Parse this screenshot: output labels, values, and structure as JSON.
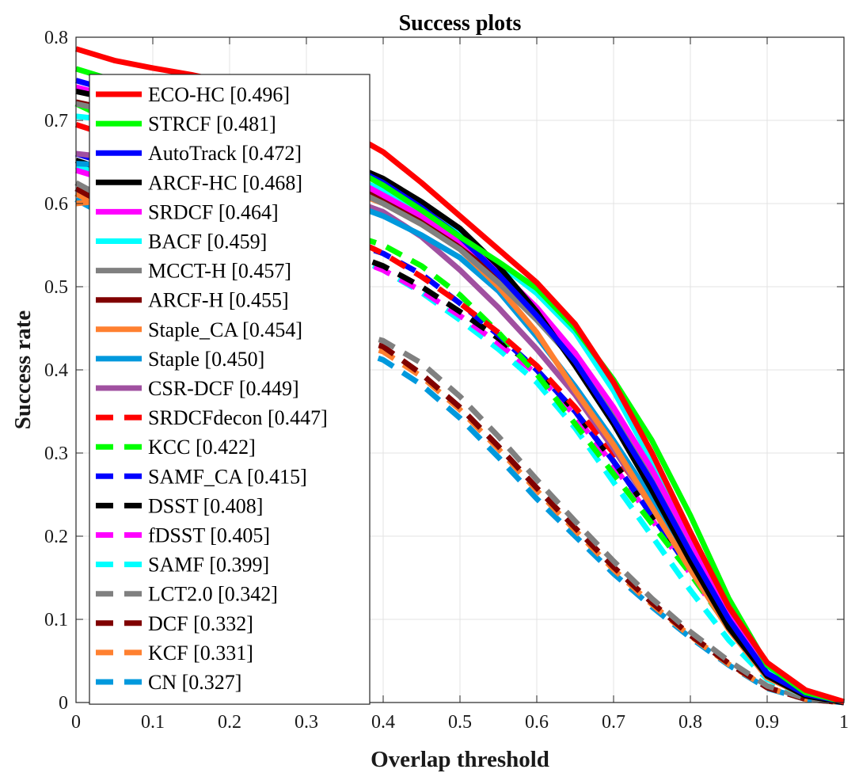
{
  "chart_data": {
    "type": "line",
    "title": "Success plots",
    "xlabel": "Overlap threshold",
    "ylabel": "Success rate",
    "xlim": [
      0,
      1
    ],
    "ylim": [
      0,
      0.8
    ],
    "xticks": [
      "0",
      "0.1",
      "0.2",
      "0.3",
      "0.4",
      "0.5",
      "0.6",
      "0.7",
      "0.8",
      "0.9",
      "1"
    ],
    "yticks": [
      "0",
      "0.1",
      "0.2",
      "0.3",
      "0.4",
      "0.5",
      "0.6",
      "0.7",
      "0.8"
    ],
    "grid": true,
    "legend_position": "top-left",
    "x": [
      0,
      0.05,
      0.1,
      0.15,
      0.2,
      0.25,
      0.3,
      0.35,
      0.4,
      0.45,
      0.5,
      0.55,
      0.6,
      0.65,
      0.7,
      0.75,
      0.8,
      0.85,
      0.9,
      0.95,
      1.0
    ],
    "series": [
      {
        "name": "ECO-HC [0.496]",
        "color": "#ff0000",
        "dash": "solid",
        "values": [
          0.786,
          0.772,
          0.763,
          0.755,
          0.745,
          0.729,
          0.711,
          0.688,
          0.662,
          0.625,
          0.585,
          0.545,
          0.505,
          0.455,
          0.385,
          0.3,
          0.205,
          0.115,
          0.048,
          0.015,
          0.001
        ]
      },
      {
        "name": "STRCF [0.481]",
        "color": "#00ff00",
        "dash": "solid",
        "values": [
          0.762,
          0.748,
          0.735,
          0.722,
          0.708,
          0.69,
          0.67,
          0.647,
          0.622,
          0.592,
          0.56,
          0.53,
          0.498,
          0.45,
          0.388,
          0.315,
          0.225,
          0.125,
          0.045,
          0.012,
          0.001
        ]
      },
      {
        "name": "AutoTrack [0.472]",
        "color": "#0000ff",
        "dash": "solid",
        "values": [
          0.748,
          0.735,
          0.722,
          0.71,
          0.697,
          0.683,
          0.668,
          0.648,
          0.625,
          0.595,
          0.56,
          0.515,
          0.465,
          0.41,
          0.34,
          0.265,
          0.18,
          0.1,
          0.035,
          0.01,
          0.001
        ]
      },
      {
        "name": "ARCF-HC [0.468]",
        "color": "#000000",
        "dash": "solid",
        "values": [
          0.735,
          0.725,
          0.713,
          0.7,
          0.69,
          0.678,
          0.665,
          0.65,
          0.63,
          0.602,
          0.57,
          0.525,
          0.47,
          0.405,
          0.335,
          0.255,
          0.17,
          0.09,
          0.032,
          0.008,
          0.0
        ]
      },
      {
        "name": "SRDCF [0.464]",
        "color": "#ff00ff",
        "dash": "solid",
        "values": [
          0.74,
          0.728,
          0.715,
          0.702,
          0.688,
          0.672,
          0.655,
          0.635,
          0.61,
          0.585,
          0.555,
          0.52,
          0.475,
          0.42,
          0.355,
          0.28,
          0.195,
          0.105,
          0.035,
          0.009,
          0.0
        ]
      },
      {
        "name": "BACF [0.459]",
        "color": "#00ffff",
        "dash": "solid",
        "values": [
          0.705,
          0.7,
          0.693,
          0.685,
          0.675,
          0.664,
          0.651,
          0.635,
          0.616,
          0.592,
          0.563,
          0.528,
          0.492,
          0.445,
          0.375,
          0.29,
          0.195,
          0.105,
          0.038,
          0.01,
          0.0
        ]
      },
      {
        "name": "MCCT-H [0.457]",
        "color": "#808080",
        "dash": "solid",
        "values": [
          0.72,
          0.71,
          0.698,
          0.685,
          0.671,
          0.656,
          0.64,
          0.622,
          0.6,
          0.575,
          0.545,
          0.505,
          0.46,
          0.41,
          0.345,
          0.27,
          0.185,
          0.1,
          0.035,
          0.009,
          0.0
        ]
      },
      {
        "name": "ARCF-H [0.455]",
        "color": "#800000",
        "dash": "solid",
        "values": [
          0.722,
          0.712,
          0.7,
          0.688,
          0.674,
          0.659,
          0.643,
          0.625,
          0.604,
          0.578,
          0.548,
          0.51,
          0.47,
          0.42,
          0.35,
          0.27,
          0.18,
          0.095,
          0.032,
          0.008,
          0.0
        ]
      },
      {
        "name": "Staple_CA [0.454]",
        "color": "#ff8030",
        "dash": "solid",
        "values": [
          0.6,
          0.605,
          0.615,
          0.626,
          0.632,
          0.632,
          0.628,
          0.618,
          0.6,
          0.575,
          0.545,
          0.5,
          0.445,
          0.375,
          0.31,
          0.235,
          0.16,
          0.088,
          0.03,
          0.008,
          0.0
        ]
      },
      {
        "name": "Staple [0.450]",
        "color": "#0099dd",
        "dash": "solid",
        "values": [
          0.648,
          0.646,
          0.643,
          0.638,
          0.632,
          0.624,
          0.614,
          0.602,
          0.585,
          0.562,
          0.535,
          0.495,
          0.44,
          0.38,
          0.315,
          0.245,
          0.17,
          0.095,
          0.033,
          0.009,
          0.0
        ]
      },
      {
        "name": "CSR-DCF [0.449]",
        "color": "#a050a0",
        "dash": "solid",
        "values": [
          0.66,
          0.655,
          0.65,
          0.645,
          0.638,
          0.63,
          0.62,
          0.607,
          0.59,
          0.56,
          0.52,
          0.475,
          0.425,
          0.37,
          0.305,
          0.235,
          0.16,
          0.088,
          0.03,
          0.008,
          0.0
        ]
      },
      {
        "name": "SRDCFdecon [0.447]",
        "color": "#ff0000",
        "dash": "dashed",
        "values": [
          0.695,
          0.68,
          0.663,
          0.645,
          0.626,
          0.606,
          0.585,
          0.562,
          0.54,
          0.512,
          0.48,
          0.445,
          0.405,
          0.355,
          0.3,
          0.24,
          0.17,
          0.098,
          0.035,
          0.009,
          0.0
        ]
      },
      {
        "name": "KCC [0.422]",
        "color": "#00ff00",
        "dash": "dashed",
        "values": [
          0.72,
          0.698,
          0.675,
          0.652,
          0.63,
          0.608,
          0.585,
          0.565,
          0.55,
          0.525,
          0.49,
          0.445,
          0.395,
          0.335,
          0.275,
          0.215,
          0.155,
          0.09,
          0.035,
          0.01,
          0.0
        ]
      },
      {
        "name": "SAMF_CA [0.415]",
        "color": "#0000ff",
        "dash": "dashed",
        "values": [
          0.66,
          0.646,
          0.631,
          0.615,
          0.6,
          0.585,
          0.57,
          0.556,
          0.54,
          0.515,
          0.48,
          0.442,
          0.4,
          0.35,
          0.29,
          0.225,
          0.16,
          0.092,
          0.034,
          0.009,
          0.0
        ]
      },
      {
        "name": "DSST [0.408]",
        "color": "#000000",
        "dash": "dashed",
        "values": [
          0.652,
          0.637,
          0.621,
          0.605,
          0.59,
          0.574,
          0.558,
          0.542,
          0.525,
          0.5,
          0.47,
          0.438,
          0.4,
          0.35,
          0.29,
          0.225,
          0.16,
          0.092,
          0.034,
          0.009,
          0.0
        ]
      },
      {
        "name": "fDSST [0.405]",
        "color": "#ff00ff",
        "dash": "dashed",
        "values": [
          0.64,
          0.626,
          0.611,
          0.596,
          0.582,
          0.567,
          0.552,
          0.538,
          0.52,
          0.495,
          0.465,
          0.432,
          0.395,
          0.345,
          0.285,
          0.22,
          0.155,
          0.09,
          0.033,
          0.009,
          0.0
        ]
      },
      {
        "name": "SAMF [0.399]",
        "color": "#00ffff",
        "dash": "dashed",
        "values": [
          0.645,
          0.631,
          0.616,
          0.601,
          0.586,
          0.571,
          0.556,
          0.541,
          0.52,
          0.493,
          0.46,
          0.425,
          0.385,
          0.33,
          0.265,
          0.2,
          0.135,
          0.075,
          0.028,
          0.008,
          0.0
        ]
      },
      {
        "name": "LCT2.0 [0.342]",
        "color": "#808080",
        "dash": "dashed",
        "values": [
          0.625,
          0.6,
          0.573,
          0.545,
          0.518,
          0.492,
          0.468,
          0.448,
          0.435,
          0.408,
          0.368,
          0.32,
          0.268,
          0.218,
          0.17,
          0.125,
          0.085,
          0.05,
          0.02,
          0.005,
          0.0
        ]
      },
      {
        "name": "DCF [0.332]",
        "color": "#800000",
        "dash": "dashed",
        "values": [
          0.618,
          0.593,
          0.566,
          0.538,
          0.511,
          0.485,
          0.461,
          0.441,
          0.428,
          0.395,
          0.355,
          0.308,
          0.258,
          0.21,
          0.163,
          0.12,
          0.081,
          0.047,
          0.018,
          0.004,
          0.0
        ]
      },
      {
        "name": "KCF [0.331]",
        "color": "#ff8030",
        "dash": "dashed",
        "values": [
          0.612,
          0.587,
          0.56,
          0.532,
          0.505,
          0.479,
          0.455,
          0.436,
          0.422,
          0.392,
          0.352,
          0.305,
          0.255,
          0.207,
          0.16,
          0.118,
          0.08,
          0.046,
          0.018,
          0.004,
          0.0
        ]
      },
      {
        "name": "CN [0.327]",
        "color": "#0099dd",
        "dash": "dashed",
        "values": [
          0.605,
          0.58,
          0.553,
          0.525,
          0.498,
          0.472,
          0.448,
          0.428,
          0.412,
          0.382,
          0.342,
          0.295,
          0.245,
          0.2,
          0.155,
          0.115,
          0.078,
          0.045,
          0.017,
          0.004,
          0.0
        ]
      }
    ]
  }
}
